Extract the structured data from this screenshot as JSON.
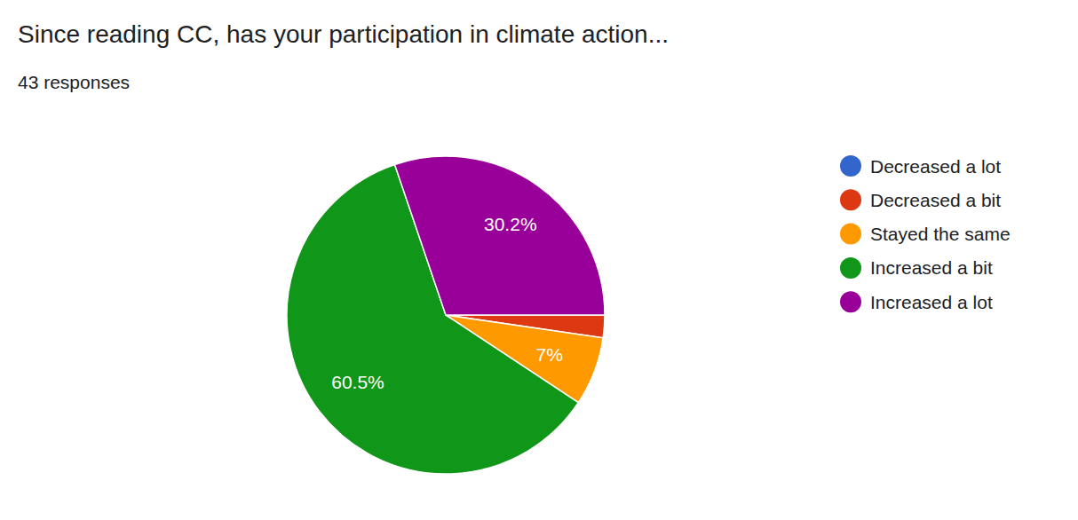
{
  "chart_data": {
    "type": "pie",
    "title": "Since reading CC, has your participation in climate action...",
    "subtitle": "43 responses",
    "categories": [
      "Decreased a lot",
      "Decreased a bit",
      "Stayed the same",
      "Increased a bit",
      "Increased a lot"
    ],
    "values": [
      0,
      2.3,
      7,
      60.5,
      30.2
    ],
    "value_labels": [
      null,
      null,
      "7%",
      "60.5%",
      "30.2%"
    ],
    "colors": [
      "#3366cc",
      "#dc3912",
      "#ff9900",
      "#109618",
      "#990099"
    ],
    "data_labels": true,
    "legend": "right"
  }
}
